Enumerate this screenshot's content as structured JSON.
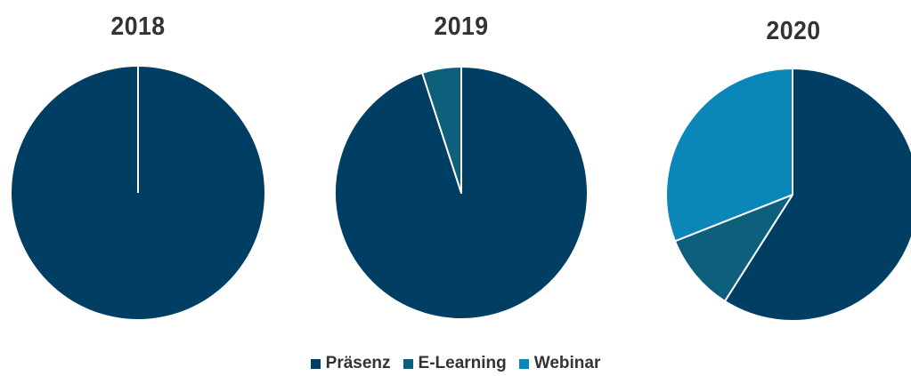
{
  "chart_data": {
    "type": "pie",
    "charts": [
      {
        "title": "2018",
        "slices": [
          {
            "name": "Präsenz",
            "value": 100
          },
          {
            "name": "E-Learning",
            "value": 0
          },
          {
            "name": "Webinar",
            "value": 0
          }
        ]
      },
      {
        "title": "2019",
        "slices": [
          {
            "name": "Präsenz",
            "value": 95
          },
          {
            "name": "E-Learning",
            "value": 5
          },
          {
            "name": "Webinar",
            "value": 0
          }
        ]
      },
      {
        "title": "2020",
        "slices": [
          {
            "name": "Präsenz",
            "value": 59
          },
          {
            "name": "E-Learning",
            "value": 10
          },
          {
            "name": "Webinar",
            "value": 31
          }
        ]
      }
    ],
    "legend": {
      "placement": "bottom",
      "entries": [
        {
          "name": "Präsenz",
          "color": "#003f63"
        },
        {
          "name": "E-Learning",
          "color": "#0e5f7c"
        },
        {
          "name": "Webinar",
          "color": "#0a87b8"
        }
      ]
    }
  }
}
